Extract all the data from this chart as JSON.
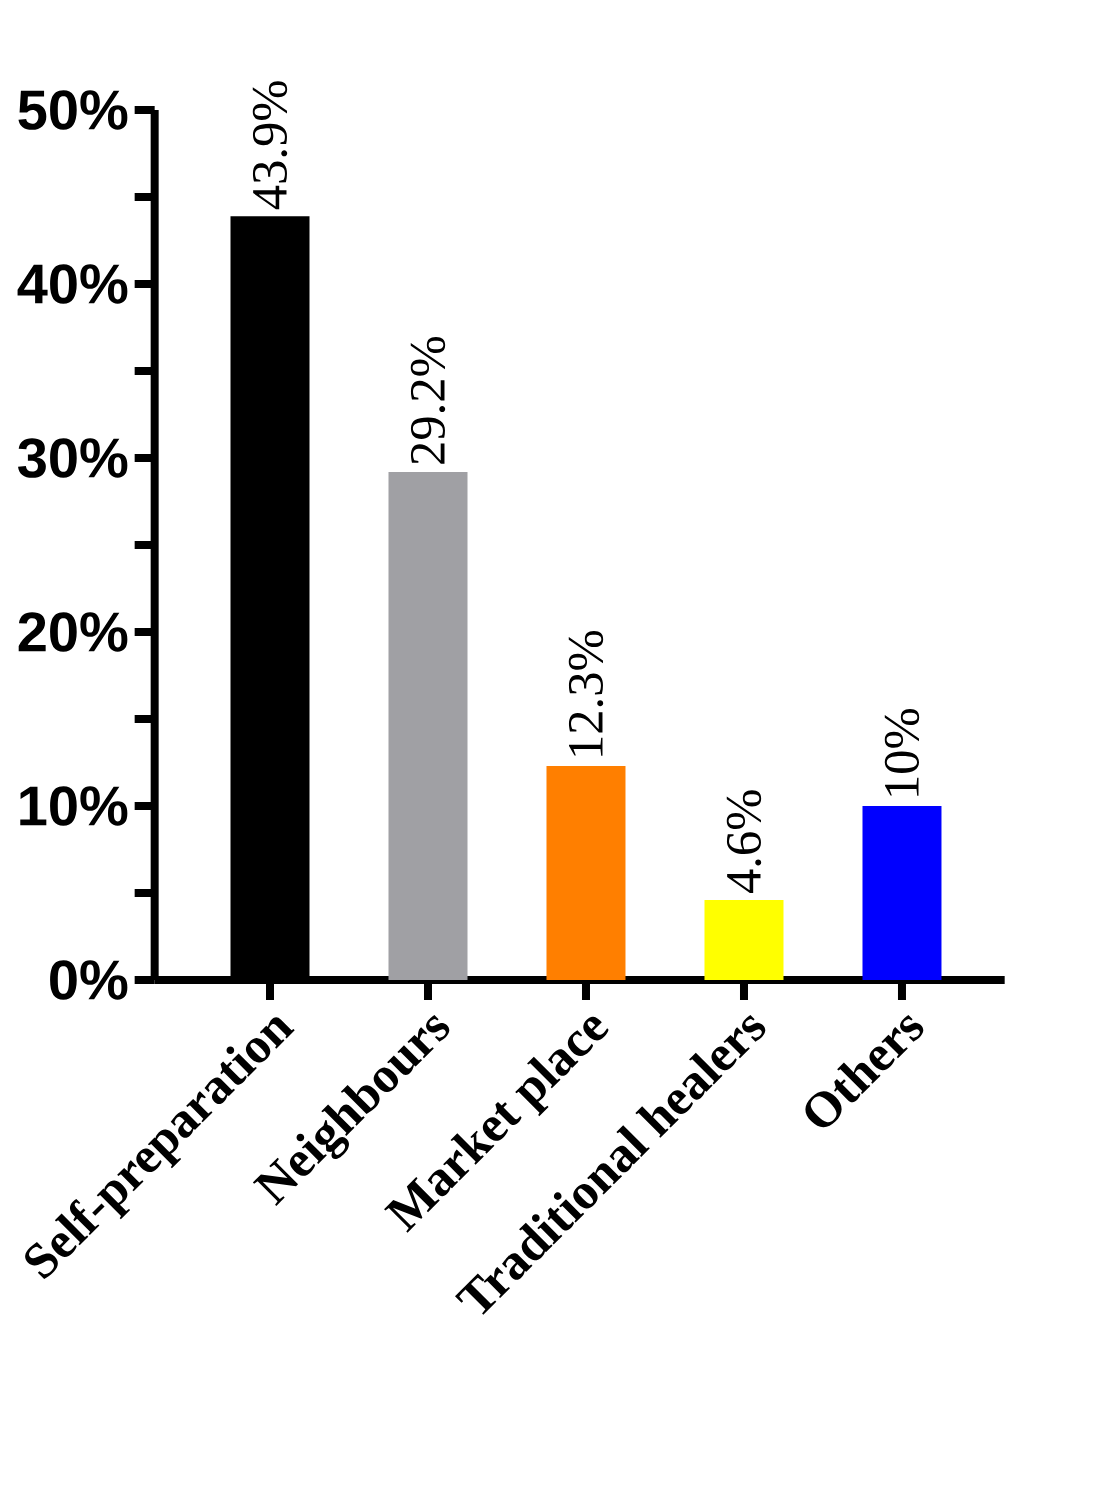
{
  "chart_data": {
    "type": "bar",
    "categories": [
      "Self-preparation",
      "Neighbours",
      "Market place",
      "Traditional healers",
      "Others"
    ],
    "values": [
      43.9,
      29.2,
      12.3,
      4.6,
      10
    ],
    "value_labels": [
      "43.9%",
      "29.2%",
      "12.3%",
      "4.6%",
      "10%"
    ],
    "colors": [
      "#000000",
      "#a0a0a4",
      "#ff7f00",
      "#ffff00",
      "#0000ff"
    ],
    "ylim": [
      0,
      50
    ],
    "yticks": [
      {
        "value": 0,
        "label": "0%"
      },
      {
        "value": 5,
        "label": null
      },
      {
        "value": 10,
        "label": "10%"
      },
      {
        "value": 15,
        "label": null
      },
      {
        "value": 20,
        "label": "20%"
      },
      {
        "value": 25,
        "label": null
      },
      {
        "value": 30,
        "label": "30%"
      },
      {
        "value": 35,
        "label": null
      },
      {
        "value": 40,
        "label": "40%"
      },
      {
        "value": 45,
        "label": null
      },
      {
        "value": 50,
        "label": "50%"
      }
    ],
    "grid": false
  }
}
